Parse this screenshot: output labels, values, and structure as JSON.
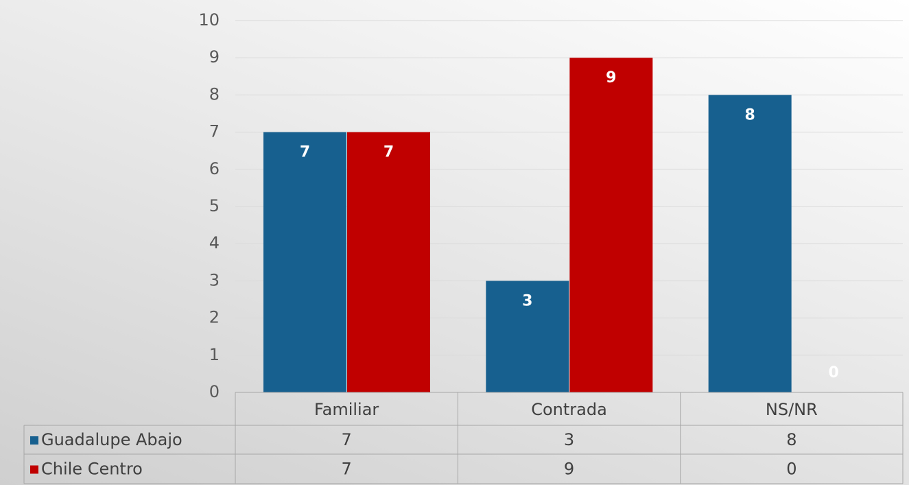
{
  "chart_data": {
    "type": "bar",
    "categories": [
      "Familiar",
      "Contrada",
      "NS/NR"
    ],
    "series": [
      {
        "name": "Guadalupe Abajo",
        "color": "#17608f",
        "values": [
          7,
          3,
          8
        ]
      },
      {
        "name": "Chile Centro",
        "color": "#c00000",
        "values": [
          7,
          9,
          0
        ]
      }
    ],
    "ylim": [
      0,
      10
    ],
    "yticks": [
      0,
      1,
      2,
      3,
      4,
      5,
      6,
      7,
      8,
      9,
      10
    ],
    "grid": true,
    "data_table": true
  }
}
